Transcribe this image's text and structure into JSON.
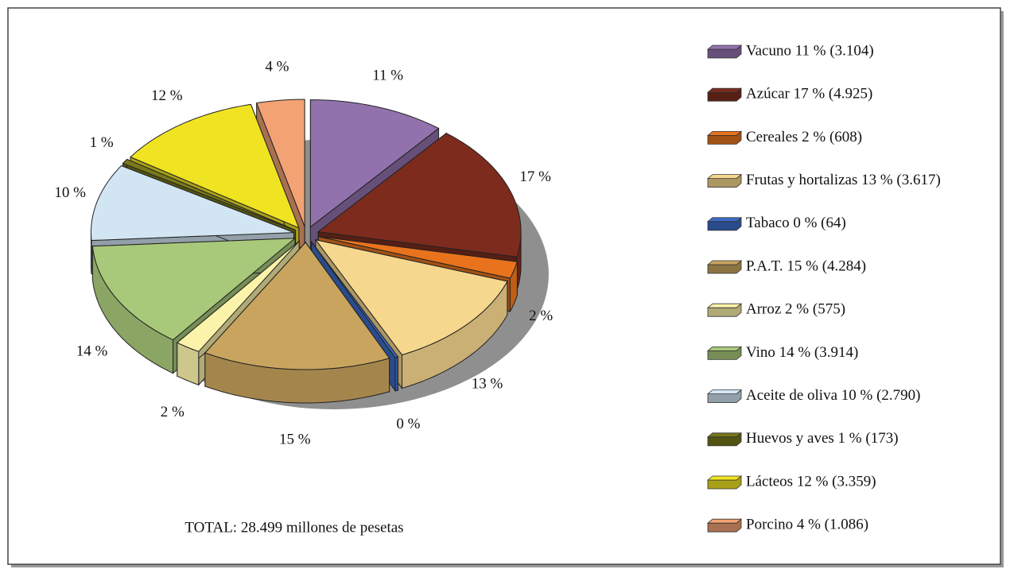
{
  "chart_data": {
    "type": "pie",
    "labels": [
      "Vacuno 11 % (3.104)",
      "Azúcar 17 % (4.925)",
      "Cereales 2 % (608)",
      "Frutas y hortalizas 13 % (3.617)",
      "Tabaco 0 % (64)",
      "P.A.T. 15 % (4.284)",
      "Arroz 2 % (575)",
      "Vino 14 % (3.914)",
      "Aceite de oliva 10 % (2.790)",
      "Huevos y aves 1 % (173)",
      "Lácteos 12 % (3.359)",
      "Porcino 4 % (1.086)"
    ],
    "values": [
      3104,
      4925,
      608,
      3617,
      64,
      4284,
      575,
      3914,
      2790,
      173,
      3359,
      1086
    ],
    "value_labels": [
      "11 %",
      "17 %",
      "2 %",
      "13 %",
      "0 %",
      "15 %",
      "2 %",
      "14 %",
      "10 %",
      "1 %",
      "12 %",
      "4 %"
    ],
    "colors": [
      "#9272ad",
      "#7c2b1d",
      "#e8731c",
      "#f6d78e",
      "#3c6cc8",
      "#c8a45e",
      "#fbf3aa",
      "#a9c97a",
      "#d2e5f2",
      "#78781a",
      "#f0e422",
      "#f2a273"
    ],
    "note": "TOTAL: 28.499 millones de pesetas"
  }
}
